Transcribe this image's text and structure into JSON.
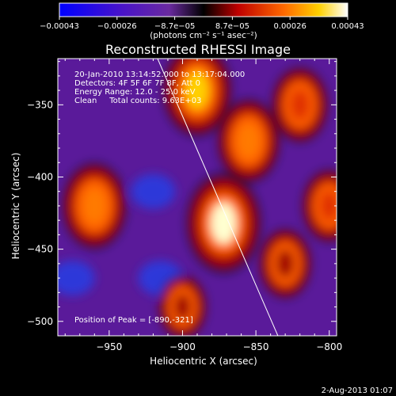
{
  "chart_data": {
    "type": "heatmap",
    "title": "Reconstructed RHESSI Image",
    "xlabel": "Heliocentric X (arcsec)",
    "ylabel": "Heliocentric Y (arcsec)",
    "xlim": [
      -985,
      -795
    ],
    "ylim": [
      -510,
      -318
    ],
    "x_ticks": [
      -950,
      -900,
      -850,
      -800
    ],
    "y_ticks": [
      -350,
      -400,
      -450,
      -500
    ],
    "x_tick_labels": [
      "−950",
      "−900",
      "−850",
      "−800"
    ],
    "y_tick_labels": [
      "−350",
      "−400",
      "−450",
      "−500"
    ],
    "colorbar": {
      "ticks": [
        -0.00043,
        -0.00026,
        -8.7e-05,
        8.7e-05,
        0.00026,
        0.00043
      ],
      "tick_labels": [
        "−0.00043",
        "−0.00026",
        "−8.7e−05",
        "8.7e−05",
        "0.00026",
        "0.00043"
      ],
      "unit_label": "(photons cm⁻² s⁻¹ asec⁻²)",
      "colors": [
        "#0000ff",
        "#4010c0",
        "#6a2aa0",
        "#000000",
        "#b00000",
        "#ff6000",
        "#ffc000",
        "#ffffff"
      ]
    },
    "annotations": [
      "20-Jan-2010 13:14:52.000 to 13:17:04.000",
      "Detectors: 4F 5F 6F 7F 8F, Att 0",
      "Energy Range: 12.0 - 25.0 keV",
      "Clean     Total counts: 9.63E+03"
    ],
    "peak_label": "Position of Peak = [-890,-321]",
    "peak": [
      -890,
      -321
    ],
    "limb_line": {
      "x": [
        -917,
        -835
      ],
      "y": [
        -318,
        -510
      ]
    },
    "hot_spots": [
      {
        "x": -960,
        "y": -420,
        "level": 0.75
      },
      {
        "x": -872,
        "y": -432,
        "level": 1.0
      },
      {
        "x": -855,
        "y": -375,
        "level": 0.7
      },
      {
        "x": -890,
        "y": -340,
        "level": 0.85
      },
      {
        "x": -820,
        "y": -350,
        "level": 0.55
      },
      {
        "x": -830,
        "y": -460,
        "level": 0.45
      },
      {
        "x": -800,
        "y": -420,
        "level": 0.5
      },
      {
        "x": -900,
        "y": -490,
        "level": 0.35
      }
    ],
    "cold_spots": [
      {
        "x": -915,
        "y": -470,
        "level": -0.6
      },
      {
        "x": -975,
        "y": -470,
        "level": -0.55
      },
      {
        "x": -920,
        "y": -410,
        "level": -0.4
      }
    ]
  },
  "footer": {
    "timestamp": "2-Aug-2013 01:07"
  }
}
